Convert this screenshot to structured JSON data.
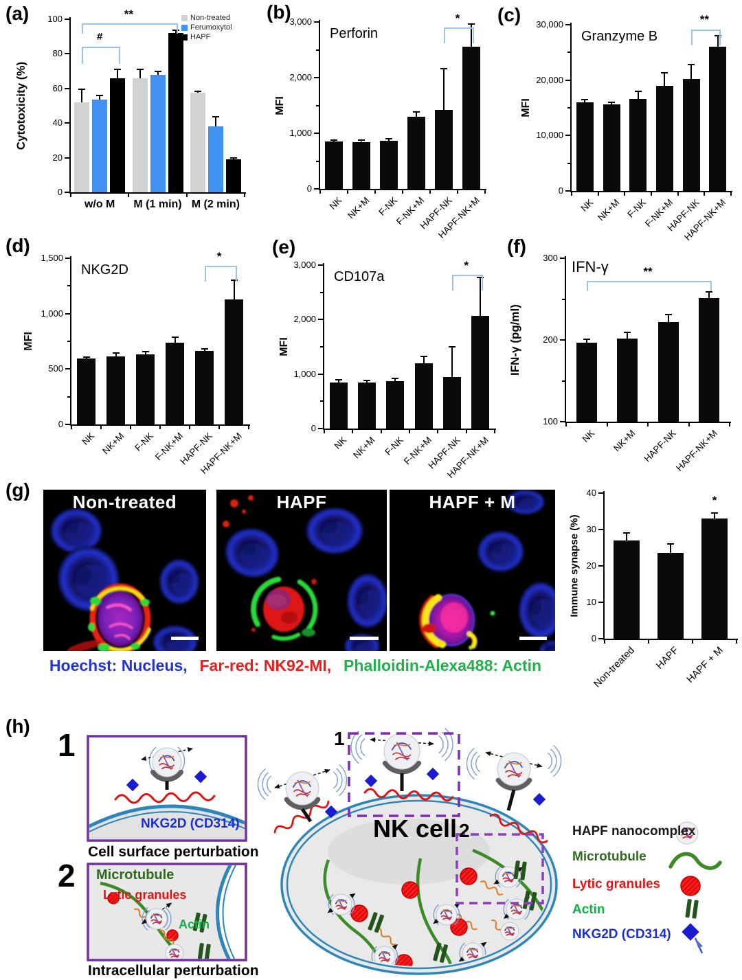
{
  "colors": {
    "non_treated_bar": "#d2d2d2",
    "ferumoxytol_bar": "#4191f2",
    "hapf_bar": "#000000",
    "sig_bracket": "#9dc3e6",
    "inset_box": "#7030a0",
    "membrane": "#2e86b8",
    "microtubule": "#3c8a28",
    "lytic_granule": "#ee1111",
    "actin_bars": "#24541c",
    "nkg2d_blue": "#1b1bd0"
  },
  "panels": {
    "a": {
      "label": "(a)"
    },
    "b": {
      "label": "(b)"
    },
    "c": {
      "label": "(c)"
    },
    "d": {
      "label": "(d)"
    },
    "e": {
      "label": "(e)"
    },
    "f": {
      "label": "(f)"
    },
    "g": {
      "label": "(g)"
    },
    "h": {
      "label": "(h)"
    }
  },
  "chart_data": [
    {
      "id": "a",
      "type": "bar",
      "title": "",
      "ylabel": "Cytotoxicity (%)",
      "ylim": [
        0,
        100
      ],
      "yticks": [
        "0",
        "20",
        "40",
        "60",
        "80",
        "100"
      ],
      "ytick_values": [
        0,
        20,
        40,
        60,
        80,
        100
      ],
      "categories": [
        "w/o M",
        "M (1 min)",
        "M (2 min)"
      ],
      "series": [
        {
          "name": "Non-treated",
          "color": "#d2d2d2",
          "values": [
            52,
            66,
            57.5
          ],
          "errors": [
            7.5,
            5,
            1
          ]
        },
        {
          "name": "Ferumoxytol",
          "color": "#4191f2",
          "values": [
            53.5,
            68,
            38
          ],
          "errors": [
            2.5,
            2,
            5.5
          ]
        },
        {
          "name": "HAPF",
          "color": "#000000",
          "values": [
            66,
            92,
            19
          ],
          "errors": [
            5,
            1.5,
            1
          ]
        }
      ],
      "legend_position": "top-right",
      "grid": false,
      "significance": [
        {
          "type": "bracket",
          "label": "#",
          "from": [
            0,
            0
          ],
          "to": [
            0,
            2
          ],
          "y": 84,
          "drop": 9
        },
        {
          "type": "bracket",
          "label": "**",
          "from": [
            0,
            0
          ],
          "to": [
            1,
            2
          ],
          "y": 97.5,
          "drop": 5
        }
      ]
    },
    {
      "id": "b",
      "type": "bar",
      "title": "Perforin",
      "ylabel": "MFI",
      "ylim": [
        0,
        3000
      ],
      "yticks": [
        "0",
        "1,000",
        "2,000",
        "3,000"
      ],
      "ytick_values": [
        0,
        1000,
        2000,
        3000
      ],
      "categories": [
        "NK",
        "NK+M",
        "F-NK",
        "F-NK+M",
        "HAPF-NK",
        "HAPF-NK+M"
      ],
      "values": [
        850,
        845,
        860,
        1300,
        1420,
        2560
      ],
      "errors": [
        30,
        30,
        45,
        80,
        740,
        400
      ],
      "grid": false,
      "significance": [
        {
          "type": "bracket",
          "label": "*",
          "from": 4,
          "to": 5,
          "y": 2900,
          "drop": 260
        }
      ]
    },
    {
      "id": "c",
      "type": "bar",
      "title": "Granzyme B",
      "ylabel": "MFI",
      "ylim": [
        0,
        30000
      ],
      "yticks": [
        "0",
        "10,000",
        "20,000",
        "30,000"
      ],
      "ytick_values": [
        0,
        10000,
        20000,
        30000
      ],
      "categories": [
        "NK",
        "NK+M",
        "F-NK",
        "F-NK+M",
        "HAPF-NK",
        "HAPF-NK+M"
      ],
      "values": [
        16000,
        15600,
        16600,
        19000,
        20200,
        26000
      ],
      "errors": [
        500,
        350,
        1400,
        2300,
        2600,
        2000
      ],
      "grid": false,
      "significance": [
        {
          "type": "bracket",
          "label": "**",
          "from": 4,
          "to": 5,
          "y": 29200,
          "drop": 2600
        }
      ]
    },
    {
      "id": "d",
      "type": "bar",
      "title": "NKG2D",
      "ylabel": "MFI",
      "ylim": [
        0,
        1500
      ],
      "yticks": [
        "0",
        "500",
        "1,000",
        "1,500"
      ],
      "ytick_values": [
        0,
        500,
        1000,
        1500
      ],
      "categories": [
        "NK",
        "NK+M",
        "F-NK",
        "F-NK+M",
        "HAPF-NK",
        "HAPF-NK+M"
      ],
      "values": [
        595,
        615,
        630,
        735,
        665,
        1130
      ],
      "errors": [
        10,
        30,
        25,
        55,
        20,
        170
      ],
      "grid": false,
      "significance": [
        {
          "type": "bracket",
          "label": "*",
          "from": 4,
          "to": 5,
          "y": 1430,
          "drop": 130
        }
      ]
    },
    {
      "id": "e",
      "type": "bar",
      "title": "CD107a",
      "ylabel": "MFI",
      "ylim": [
        0,
        3000
      ],
      "yticks": [
        "0",
        "1,000",
        "2,000",
        "3,000"
      ],
      "ytick_values": [
        0,
        1000,
        2000,
        3000
      ],
      "categories": [
        "NK",
        "NK+M",
        "F-NK",
        "F-NK+M",
        "HAPF-NK",
        "HAPF-NK+M"
      ],
      "values": [
        850,
        850,
        870,
        1200,
        950,
        2070
      ],
      "errors": [
        40,
        35,
        50,
        120,
        550,
        700
      ],
      "grid": false,
      "significance": [
        {
          "type": "bracket",
          "label": "*",
          "from": 4,
          "to": 5,
          "y": 2820,
          "drop": 260
        }
      ]
    },
    {
      "id": "f",
      "type": "bar",
      "title": "IFN-γ",
      "ylabel": "IFN-γ  (pg/ml)",
      "ylim": [
        100,
        300
      ],
      "yticks": [
        "100",
        "200",
        "300"
      ],
      "ytick_values": [
        100,
        200,
        300
      ],
      "categories": [
        "NK",
        "NK+M",
        "HAPF-NK",
        "HAPF-NK+M"
      ],
      "values": [
        197,
        202,
        222,
        251
      ],
      "errors": [
        4,
        7,
        9,
        8
      ],
      "grid": false,
      "significance": [
        {
          "type": "bracket",
          "label": "**",
          "from": 0,
          "to": 3,
          "y": 272,
          "drop": 11
        }
      ]
    },
    {
      "id": "g",
      "type": "bar",
      "title": "",
      "ylabel": "Immune synapse (%)",
      "ylim": [
        0,
        40
      ],
      "yticks": [
        "0",
        "10",
        "20",
        "30",
        "40"
      ],
      "ytick_values": [
        0,
        10,
        20,
        30,
        40
      ],
      "categories": [
        "Non-treated",
        "HAPF",
        "HAPF + M"
      ],
      "values": [
        27,
        23.5,
        33
      ],
      "errors": [
        2,
        2.5,
        1.5
      ],
      "grid": false,
      "significance": [
        {
          "type": "star",
          "label": "*",
          "at": 2,
          "y": 37.5
        }
      ]
    }
  ],
  "microscopy": {
    "images": [
      {
        "title": "Non-treated"
      },
      {
        "title": "HAPF"
      },
      {
        "title": "HAPF + M"
      }
    ],
    "caption": [
      {
        "text": "Hoechst: Nucleus,",
        "color": "#2233dd"
      },
      {
        "text": "Far-red: NK92-MI,",
        "color": "#e81e1e"
      },
      {
        "text": "Phalloidin-Alexa488: Actin",
        "color": "#21b14a"
      }
    ]
  },
  "diagram": {
    "box1_number": "1",
    "box1_label": "NKG2D (CD314)",
    "box1_caption": "Cell surface perturbation",
    "box2_number": "2",
    "box2_labels": {
      "microtubule": "Microtubule",
      "lytic": "Lytic granules",
      "actin": "Actin"
    },
    "box2_caption": "Intracellular perturbation",
    "cell_label": "NK cell",
    "inset1_number": "1",
    "inset2_number": "2",
    "legend": [
      {
        "label": "HAPF nanocomplex",
        "icon": "nanocomplex-icon",
        "color": "#1a1a1a"
      },
      {
        "label": "Microtubule",
        "icon": "microtubule-icon",
        "color": "#2f6b1f"
      },
      {
        "label": "Lytic granules",
        "icon": "lytic-granule-icon",
        "color": "#ee1111"
      },
      {
        "label": "Actin",
        "icon": "actin-icon",
        "color": "#11b14a"
      },
      {
        "label": "NKG2D (CD314)",
        "icon": "nkg2d-icon",
        "color": "#1a2fd0"
      }
    ]
  }
}
